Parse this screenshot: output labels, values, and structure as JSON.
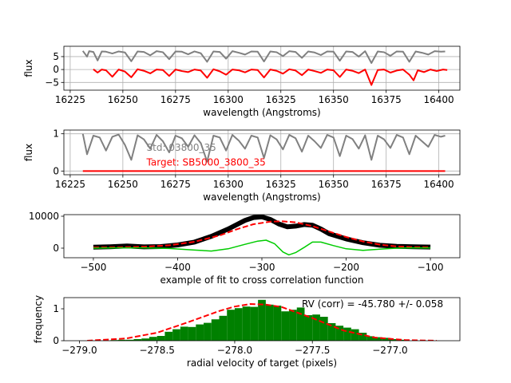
{
  "chart_data": [
    {
      "type": "line",
      "xlabel": "wavelength (Angstroms)",
      "ylabel": "flux",
      "xlim": [
        16222,
        16410
      ],
      "ylim": [
        -8,
        9
      ],
      "xticks": [
        16225,
        16250,
        16275,
        16300,
        16325,
        16350,
        16375,
        16400
      ],
      "yticks": [
        5,
        0,
        -5
      ],
      "grid": true,
      "series": [
        {
          "color": "#808080",
          "baseline": 7.0,
          "x": [
            16231,
            16233,
            16234,
            16236,
            16238,
            16240,
            16242,
            16245,
            16248,
            16251,
            16254,
            16257,
            16260,
            16263,
            16266,
            16269,
            16272,
            16275,
            16278,
            16281,
            16284,
            16287,
            16290,
            16293,
            16296,
            16299,
            16302,
            16305,
            16308,
            16311,
            16314,
            16317,
            16320,
            16323,
            16326,
            16329,
            16332,
            16335,
            16338,
            16341,
            16344,
            16347,
            16350,
            16353,
            16356,
            16359,
            16362,
            16365,
            16368,
            16371,
            16374,
            16377,
            16380,
            16383,
            16386,
            16389,
            16392,
            16395,
            16398,
            16401,
            16403
          ],
          "y": [
            7.2,
            5.0,
            7.1,
            6.8,
            3.5,
            7.0,
            6.9,
            6.2,
            7.0,
            6.6,
            3.2,
            7.0,
            6.8,
            5.5,
            7.1,
            6.7,
            4.0,
            7.0,
            6.9,
            5.9,
            7.0,
            6.3,
            3.0,
            7.0,
            6.8,
            4.2,
            7.1,
            6.5,
            5.8,
            7.0,
            6.9,
            3.1,
            7.0,
            6.7,
            5.2,
            7.1,
            6.8,
            4.5,
            7.0,
            6.6,
            5.6,
            7.0,
            6.9,
            3.4,
            7.0,
            6.8,
            5.0,
            7.1,
            2.5,
            7.0,
            6.7,
            5.3,
            7.0,
            6.9,
            3.0,
            7.0,
            6.5,
            5.8,
            7.1,
            6.9,
            7.0
          ]
        },
        {
          "color": "#ff0000",
          "baseline": 0.0,
          "x": [
            16236,
            16238,
            16240,
            16242,
            16245,
            16248,
            16251,
            16254,
            16257,
            16260,
            16263,
            16266,
            16269,
            16272,
            16275,
            16278,
            16281,
            16284,
            16287,
            16290,
            16293,
            16296,
            16299,
            16302,
            16305,
            16308,
            16311,
            16314,
            16317,
            16320,
            16323,
            16326,
            16329,
            16332,
            16335,
            16338,
            16341,
            16344,
            16347,
            16350,
            16353,
            16356,
            16359,
            16362,
            16365,
            16368,
            16371,
            16374,
            16377,
            16380,
            16383,
            16386,
            16388,
            16390,
            16393,
            16396,
            16399,
            16402,
            16404
          ],
          "y": [
            0.1,
            -1.2,
            0.0,
            -0.3,
            -2.8,
            0.0,
            -0.8,
            -3.0,
            0.1,
            -0.5,
            -1.5,
            0.0,
            -0.2,
            -2.5,
            0.0,
            -0.6,
            -1.0,
            0.0,
            -0.4,
            -3.2,
            0.1,
            -0.7,
            -2.0,
            0.0,
            -0.3,
            -1.1,
            0.0,
            -0.2,
            -3.1,
            0.0,
            -0.5,
            -1.6,
            0.1,
            -0.4,
            -2.2,
            0.0,
            -0.6,
            -1.3,
            0.0,
            -0.3,
            -2.9,
            0.0,
            -0.5,
            -1.4,
            0.0,
            -6.0,
            -0.2,
            0.0,
            -1.2,
            -0.4,
            0.0,
            -2.0,
            -4.2,
            -0.3,
            -1.0,
            0.0,
            -0.6,
            0.0,
            -0.2
          ]
        }
      ]
    },
    {
      "type": "line",
      "xlabel": "wavelength (Angstroms)",
      "ylabel": "flux",
      "xlim": [
        16222,
        16410
      ],
      "ylim": [
        -0.1,
        1.1
      ],
      "xticks": [
        16225,
        16250,
        16275,
        16300,
        16325,
        16350,
        16375,
        16400
      ],
      "yticks": [
        1,
        0
      ],
      "grid": true,
      "annotations": [
        {
          "text": "Std: 03800_35",
          "x": 16262,
          "y": 0.65,
          "color": "#808080"
        },
        {
          "text": "Target: SB5000_3800_35",
          "x": 16262,
          "y": 0.25,
          "color": "#ff0000"
        }
      ],
      "series": [
        {
          "color": "#808080",
          "baseline": 1.0,
          "x": [
            16231,
            16233,
            16236,
            16239,
            16242,
            16245,
            16248,
            16251,
            16254,
            16257,
            16260,
            16263,
            16266,
            16269,
            16272,
            16275,
            16278,
            16281,
            16284,
            16287,
            16290,
            16293,
            16296,
            16299,
            16302,
            16305,
            16308,
            16311,
            16314,
            16317,
            16320,
            16323,
            16326,
            16329,
            16332,
            16335,
            16338,
            16341,
            16344,
            16347,
            16350,
            16353,
            16356,
            16359,
            16362,
            16365,
            16368,
            16371,
            16374,
            16377,
            16380,
            16383,
            16386,
            16389,
            16392,
            16395,
            16398,
            16401,
            16403
          ],
          "y": [
            1.0,
            0.45,
            0.95,
            0.9,
            0.55,
            0.92,
            0.98,
            0.7,
            0.3,
            0.96,
            0.85,
            0.6,
            0.97,
            0.8,
            0.5,
            0.95,
            0.88,
            0.65,
            0.96,
            0.75,
            0.25,
            0.95,
            0.9,
            0.55,
            0.97,
            0.82,
            0.6,
            0.95,
            0.9,
            0.35,
            0.96,
            0.85,
            0.58,
            0.97,
            0.88,
            0.52,
            0.95,
            0.8,
            0.62,
            0.97,
            0.9,
            0.4,
            0.95,
            0.86,
            0.6,
            0.96,
            0.3,
            0.95,
            0.85,
            0.62,
            0.97,
            0.9,
            0.45,
            0.95,
            0.8,
            0.65,
            0.97,
            0.92,
            0.95
          ]
        },
        {
          "color": "#ff0000",
          "baseline": 0.0,
          "x": [
            16231,
            16403
          ],
          "y": [
            0.0,
            0.0
          ]
        }
      ]
    },
    {
      "type": "line",
      "xlabel": "example of fit to cross correlation function",
      "ylabel": "",
      "xlim": [
        -535,
        -65
      ],
      "ylim": [
        -3000,
        10500
      ],
      "xticks": [
        -500,
        -400,
        -300,
        -200,
        -100
      ],
      "yticks": [
        10000,
        0
      ],
      "grid": false,
      "series": [
        {
          "color": "#000000",
          "style": "thick",
          "x": [
            -500,
            -480,
            -460,
            -440,
            -420,
            -400,
            -380,
            -360,
            -340,
            -320,
            -310,
            -300,
            -290,
            -280,
            -270,
            -260,
            -250,
            -240,
            -230,
            -220,
            -200,
            -180,
            -160,
            -140,
            -120,
            -100
          ],
          "y": [
            300,
            450,
            700,
            400,
            500,
            1000,
            1900,
            3700,
            6000,
            8700,
            9600,
            9800,
            9000,
            7600,
            6700,
            6900,
            7400,
            7200,
            6000,
            4500,
            2900,
            1700,
            900,
            550,
            450,
            350
          ]
        },
        {
          "color": "#ff0000",
          "style": "dashed",
          "x": [
            -500,
            -470,
            -440,
            -410,
            -380,
            -350,
            -330,
            -310,
            -290,
            -275,
            -260,
            -240,
            -220,
            -200,
            -180,
            -160,
            -140,
            -120,
            -100
          ],
          "y": [
            200,
            250,
            450,
            900,
            2000,
            4000,
            5900,
            7500,
            8300,
            8400,
            8100,
            6900,
            5200,
            3500,
            2100,
            1100,
            550,
            300,
            250
          ]
        },
        {
          "color": "#00cc00",
          "style": "solid",
          "x": [
            -500,
            -470,
            -440,
            -410,
            -380,
            -360,
            -340,
            -320,
            -305,
            -295,
            -285,
            -275,
            -268,
            -260,
            -250,
            -240,
            -230,
            -215,
            -200,
            -180,
            -160,
            -140,
            -120,
            -100
          ],
          "y": [
            0,
            100,
            100,
            -100,
            -600,
            -900,
            -200,
            1200,
            2200,
            2500,
            1400,
            -1200,
            -2100,
            -1400,
            200,
            1900,
            1900,
            800,
            -200,
            -700,
            -300,
            0,
            100,
            50
          ]
        }
      ]
    },
    {
      "type": "bar",
      "xlabel": "radial velocity of target (pixels)",
      "ylabel": "frequency",
      "xlim": [
        -279.1,
        -276.55
      ],
      "ylim": [
        0,
        1.35
      ],
      "xticks": [
        -279.0,
        -278.5,
        -278.0,
        -277.5,
        -277.0
      ],
      "yticks": [
        0,
        1
      ],
      "grid": false,
      "annotation": "RV (corr) = -45.780 +/- 0.058",
      "bar_color": "#008000",
      "bins_start": -278.8,
      "bin_width": 0.05,
      "values": [
        0.02,
        0.03,
        0.03,
        0.05,
        0.07,
        0.12,
        0.15,
        0.28,
        0.36,
        0.44,
        0.43,
        0.51,
        0.56,
        0.67,
        0.78,
        0.97,
        1.02,
        1.07,
        1.06,
        1.28,
        1.13,
        1.1,
        0.92,
        0.97,
        1.04,
        0.8,
        0.82,
        0.75,
        0.55,
        0.47,
        0.41,
        0.36,
        0.25,
        0.14,
        0.11,
        0.09,
        0.05,
        0.03
      ],
      "fit": {
        "color": "#ff0000",
        "style": "dashed",
        "x": [
          -278.95,
          -278.7,
          -278.5,
          -278.3,
          -278.1,
          -278.0,
          -277.9,
          -277.8,
          -277.7,
          -277.5,
          -277.3,
          -277.1,
          -276.9,
          -276.7
        ],
        "y": [
          0.0,
          0.07,
          0.25,
          0.58,
          0.93,
          1.07,
          1.15,
          1.13,
          1.06,
          0.71,
          0.32,
          0.1,
          0.02,
          0.0
        ]
      }
    }
  ]
}
